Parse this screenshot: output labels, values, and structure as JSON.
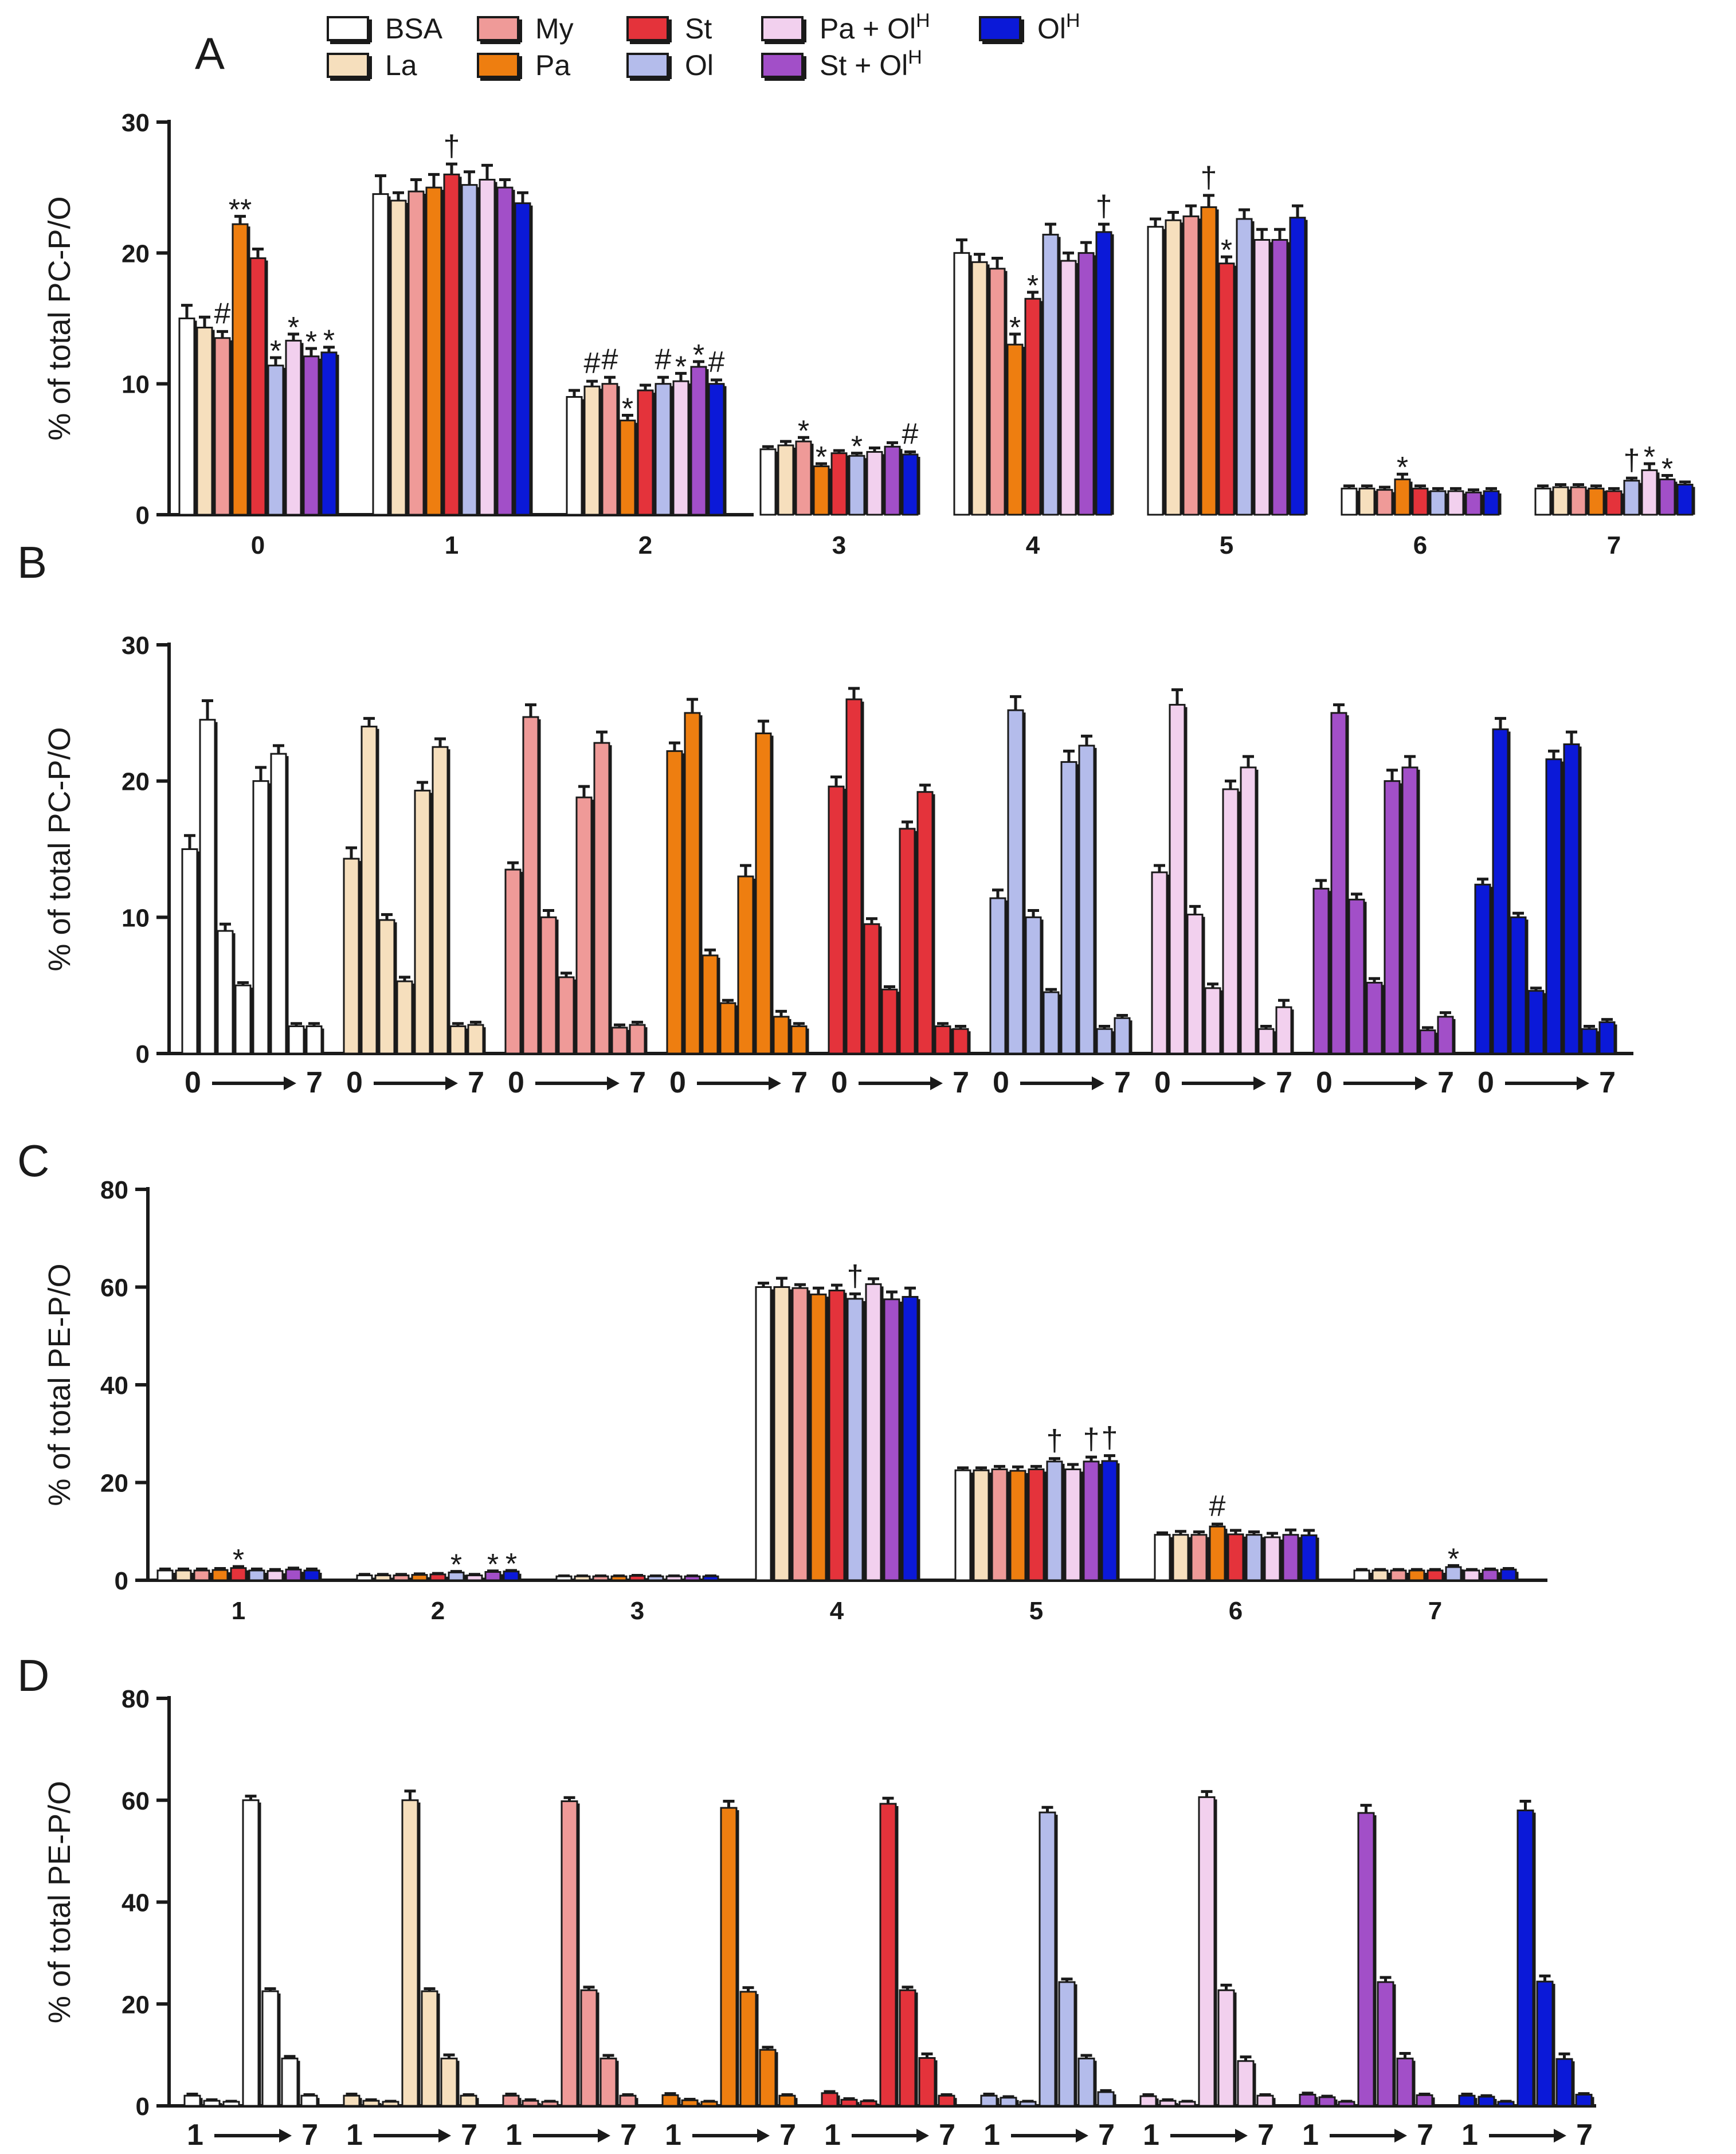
{
  "legend": [
    {
      "key": "bsa",
      "label": "BSA",
      "sup": "",
      "color": "#ffffff"
    },
    {
      "key": "la",
      "label": "La",
      "sup": "",
      "color": "#f6dfbd"
    },
    {
      "key": "my",
      "label": "My",
      "sup": "",
      "color": "#ef9a98"
    },
    {
      "key": "pa",
      "label": "Pa",
      "sup": "",
      "color": "#ee7e10"
    },
    {
      "key": "st",
      "label": "St",
      "sup": "",
      "color": "#e4333b"
    },
    {
      "key": "ol",
      "label": "Ol",
      "sup": "",
      "color": "#b4bceb"
    },
    {
      "key": "paolh",
      "label": "Pa + Ol",
      "sup": "H",
      "color": "#f2d0ee"
    },
    {
      "key": "stolh",
      "label": "St + Ol",
      "sup": "H",
      "color": "#a24fc8"
    },
    {
      "key": "olh",
      "label": "Ol",
      "sup": "H",
      "color": "#0b19d8"
    }
  ],
  "chart_data": [
    {
      "panel": "A",
      "type": "bar",
      "grouping": "by-position",
      "ylabel": "% of total PC-P/O",
      "ylim": [
        0,
        30
      ],
      "yticks": [
        0,
        10,
        20,
        30
      ],
      "categories": [
        "0",
        "1",
        "2",
        "3",
        "4",
        "5",
        "6",
        "7"
      ],
      "series": [
        {
          "name": "BSA",
          "values": [
            15.0,
            24.5,
            9.0,
            5.0,
            20.0,
            22.0,
            2.0,
            2.0
          ]
        },
        {
          "name": "La",
          "values": [
            14.3,
            24.0,
            9.8,
            5.3,
            19.3,
            22.5,
            2.0,
            2.1
          ]
        },
        {
          "name": "My",
          "values": [
            13.5,
            24.7,
            10.0,
            5.6,
            18.8,
            22.8,
            1.9,
            2.1
          ]
        },
        {
          "name": "Pa",
          "values": [
            22.2,
            25.0,
            7.2,
            3.7,
            13.0,
            23.5,
            2.7,
            2.0
          ]
        },
        {
          "name": "St",
          "values": [
            19.6,
            26.0,
            9.5,
            4.7,
            16.5,
            19.2,
            2.0,
            1.8
          ]
        },
        {
          "name": "Ol",
          "values": [
            11.4,
            25.2,
            10.0,
            4.5,
            21.4,
            22.6,
            1.8,
            2.6
          ]
        },
        {
          "name": "Pa + OlH",
          "values": [
            13.3,
            25.6,
            10.2,
            4.8,
            19.4,
            21.0,
            1.8,
            3.4
          ]
        },
        {
          "name": "St + OlH",
          "values": [
            12.1,
            25.0,
            11.3,
            5.2,
            20.0,
            21.0,
            1.7,
            2.7
          ]
        },
        {
          "name": "OlH",
          "values": [
            12.4,
            23.8,
            10.0,
            4.6,
            21.6,
            22.7,
            1.8,
            2.3
          ]
        }
      ],
      "errors": [
        [
          1.0,
          1.4,
          0.5,
          0.2,
          1.0,
          0.6,
          0.2,
          0.2
        ],
        [
          0.8,
          0.6,
          0.4,
          0.3,
          0.6,
          0.6,
          0.2,
          0.2
        ],
        [
          0.5,
          0.9,
          0.5,
          0.3,
          0.8,
          0.8,
          0.2,
          0.2
        ],
        [
          0.6,
          1.0,
          0.4,
          0.2,
          0.8,
          0.9,
          0.4,
          0.2
        ],
        [
          0.7,
          0.8,
          0.4,
          0.2,
          0.5,
          0.5,
          0.2,
          0.2
        ],
        [
          0.6,
          1.0,
          0.5,
          0.2,
          0.8,
          0.7,
          0.2,
          0.2
        ],
        [
          0.5,
          1.1,
          0.6,
          0.3,
          0.6,
          0.8,
          0.2,
          0.5
        ],
        [
          0.6,
          0.6,
          0.4,
          0.3,
          0.8,
          0.8,
          0.2,
          0.3
        ],
        [
          0.4,
          0.8,
          0.3,
          0.2,
          0.6,
          0.9,
          0.2,
          0.2
        ]
      ],
      "annotations": [
        {
          "group": 0,
          "series": 2,
          "text": "#"
        },
        {
          "group": 0,
          "series": 3,
          "text": "**"
        },
        {
          "group": 0,
          "series": 5,
          "text": "*"
        },
        {
          "group": 0,
          "series": 6,
          "text": "*"
        },
        {
          "group": 0,
          "series": 7,
          "text": "*"
        },
        {
          "group": 0,
          "series": 8,
          "text": "*"
        },
        {
          "group": 1,
          "series": 4,
          "text": "†"
        },
        {
          "group": 2,
          "series": 1,
          "text": "#"
        },
        {
          "group": 2,
          "series": 2,
          "text": "#"
        },
        {
          "group": 2,
          "series": 3,
          "text": "*"
        },
        {
          "group": 2,
          "series": 5,
          "text": "#"
        },
        {
          "group": 2,
          "series": 6,
          "text": "*"
        },
        {
          "group": 2,
          "series": 7,
          "text": "*"
        },
        {
          "group": 2,
          "series": 8,
          "text": "#"
        },
        {
          "group": 3,
          "series": 2,
          "text": "*"
        },
        {
          "group": 3,
          "series": 3,
          "text": "*"
        },
        {
          "group": 3,
          "series": 5,
          "text": "*"
        },
        {
          "group": 3,
          "series": 8,
          "text": "#"
        },
        {
          "group": 4,
          "series": 3,
          "text": "*"
        },
        {
          "group": 4,
          "series": 4,
          "text": "*"
        },
        {
          "group": 4,
          "series": 8,
          "text": "†"
        },
        {
          "group": 5,
          "series": 3,
          "text": "†"
        },
        {
          "group": 5,
          "series": 4,
          "text": "*"
        },
        {
          "group": 6,
          "series": 3,
          "text": "*"
        },
        {
          "group": 7,
          "series": 5,
          "text": "†"
        },
        {
          "group": 7,
          "series": 6,
          "text": "*"
        },
        {
          "group": 7,
          "series": 7,
          "text": "*"
        }
      ]
    },
    {
      "panel": "B",
      "type": "bar",
      "grouping": "by-treatment",
      "ylabel": "% of total PC-P/O",
      "ylim": [
        0,
        30
      ],
      "yticks": [
        0,
        10,
        20,
        30
      ],
      "group_label_start": "0",
      "group_label_end": "7",
      "series_source": "A"
    },
    {
      "panel": "C",
      "type": "bar",
      "grouping": "by-position",
      "ylabel": "% of total PE-P/O",
      "ylim": [
        0,
        80
      ],
      "yticks": [
        0,
        20,
        40,
        60,
        80
      ],
      "categories": [
        "1",
        "2",
        "3",
        "4",
        "5",
        "6",
        "7"
      ],
      "series": [
        {
          "name": "BSA",
          "values": [
            2.0,
            1.0,
            0.8,
            60.0,
            22.5,
            9.3,
            2.0
          ]
        },
        {
          "name": "La",
          "values": [
            2.0,
            1.0,
            0.8,
            60.0,
            22.5,
            9.3,
            2.0
          ]
        },
        {
          "name": "My",
          "values": [
            2.0,
            1.0,
            0.8,
            59.8,
            22.7,
            9.3,
            2.0
          ]
        },
        {
          "name": "Pa",
          "values": [
            2.1,
            1.1,
            0.8,
            58.5,
            22.4,
            11.0,
            2.0
          ]
        },
        {
          "name": "St",
          "values": [
            2.5,
            1.2,
            0.9,
            59.3,
            22.7,
            9.4,
            2.0
          ]
        },
        {
          "name": "Ol",
          "values": [
            2.0,
            1.6,
            0.8,
            57.6,
            24.3,
            9.3,
            2.7
          ]
        },
        {
          "name": "Pa + OlH",
          "values": [
            1.9,
            1.0,
            0.8,
            60.6,
            22.7,
            8.8,
            2.0
          ]
        },
        {
          "name": "St + OlH",
          "values": [
            2.2,
            1.7,
            0.8,
            57.5,
            24.3,
            9.3,
            2.1
          ]
        },
        {
          "name": "OlH",
          "values": [
            2.0,
            1.8,
            0.8,
            58.0,
            24.4,
            9.2,
            2.2
          ]
        }
      ],
      "errors": [
        [
          0.3,
          0.2,
          0.1,
          0.8,
          0.5,
          0.4,
          0.2
        ],
        [
          0.3,
          0.2,
          0.1,
          1.8,
          0.5,
          0.7,
          0.2
        ],
        [
          0.3,
          0.2,
          0.1,
          0.7,
          0.6,
          0.6,
          0.2
        ],
        [
          0.3,
          0.2,
          0.1,
          1.3,
          0.8,
          0.5,
          0.2
        ],
        [
          0.3,
          0.2,
          0.1,
          1.1,
          0.6,
          0.8,
          0.2
        ],
        [
          0.3,
          0.2,
          0.1,
          1.0,
          0.6,
          0.6,
          0.3
        ],
        [
          0.3,
          0.2,
          0.1,
          1.1,
          1.0,
          0.8,
          0.2
        ],
        [
          0.3,
          0.2,
          0.1,
          1.5,
          0.9,
          1.0,
          0.2
        ],
        [
          0.3,
          0.2,
          0.1,
          1.8,
          1.1,
          1.0,
          0.2
        ]
      ],
      "annotations": [
        {
          "group": 0,
          "series": 4,
          "text": "*"
        },
        {
          "group": 1,
          "series": 5,
          "text": "*"
        },
        {
          "group": 1,
          "series": 7,
          "text": "*"
        },
        {
          "group": 1,
          "series": 8,
          "text": "*"
        },
        {
          "group": 3,
          "series": 5,
          "text": "†"
        },
        {
          "group": 4,
          "series": 5,
          "text": "†"
        },
        {
          "group": 4,
          "series": 7,
          "text": "†"
        },
        {
          "group": 4,
          "series": 8,
          "text": "†"
        },
        {
          "group": 5,
          "series": 3,
          "text": "#"
        },
        {
          "group": 6,
          "series": 5,
          "text": "*"
        }
      ]
    },
    {
      "panel": "D",
      "type": "bar",
      "grouping": "by-treatment",
      "ylabel": "% of total PE-P/O",
      "ylim": [
        0,
        80
      ],
      "yticks": [
        0,
        20,
        40,
        60,
        80
      ],
      "group_label_start": "1",
      "group_label_end": "7",
      "series_source": "C"
    }
  ]
}
